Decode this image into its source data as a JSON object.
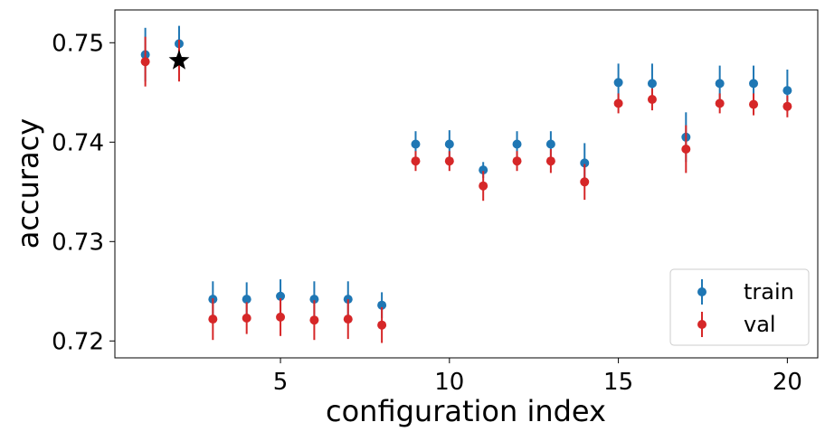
{
  "chart_data": {
    "type": "scatter",
    "title": "",
    "xlabel": "configuration index",
    "ylabel": "accuracy",
    "xlim": [
      0.1,
      20.9
    ],
    "ylim": [
      0.7183,
      0.7533
    ],
    "xticks": [
      5,
      10,
      15,
      20
    ],
    "yticks": [
      0.72,
      0.73,
      0.74,
      0.75
    ],
    "ytick_labels": [
      "0.72",
      "0.73",
      "0.74",
      "0.75"
    ],
    "grid": false,
    "legend_position": "bottom-right",
    "series": [
      {
        "name": "train",
        "color": "#1f77b4",
        "x": [
          1,
          2,
          3,
          4,
          5,
          6,
          7,
          8,
          9,
          10,
          11,
          12,
          13,
          14,
          15,
          16,
          17,
          18,
          19,
          20
        ],
        "y": [
          0.7488,
          0.7499,
          0.7242,
          0.7242,
          0.7245,
          0.7242,
          0.7242,
          0.7236,
          0.7398,
          0.7398,
          0.7372,
          0.7398,
          0.7398,
          0.7379,
          0.746,
          0.7459,
          0.7405,
          0.7459,
          0.7459,
          0.7452
        ],
        "err": [
          0.0027,
          0.0018,
          0.0018,
          0.0017,
          0.0017,
          0.0018,
          0.0018,
          0.0013,
          0.0013,
          0.0014,
          0.0008,
          0.0013,
          0.0013,
          0.002,
          0.0019,
          0.002,
          0.0025,
          0.0018,
          0.0018,
          0.0021
        ]
      },
      {
        "name": "val",
        "color": "#d62728",
        "x": [
          1,
          2,
          3,
          4,
          5,
          6,
          7,
          8,
          9,
          10,
          11,
          12,
          13,
          14,
          15,
          16,
          17,
          18,
          19,
          20
        ],
        "y": [
          0.7481,
          0.7482,
          0.7222,
          0.7223,
          0.7224,
          0.7221,
          0.7222,
          0.7216,
          0.7381,
          0.7381,
          0.7356,
          0.7381,
          0.7381,
          0.736,
          0.7439,
          0.7443,
          0.7393,
          0.7439,
          0.7438,
          0.7436
        ],
        "err": [
          0.0025,
          0.0021,
          0.0021,
          0.0016,
          0.0019,
          0.002,
          0.002,
          0.0018,
          0.001,
          0.001,
          0.0015,
          0.001,
          0.0012,
          0.0018,
          0.001,
          0.0011,
          0.0024,
          0.001,
          0.0011,
          0.0011
        ]
      }
    ],
    "markers": [
      {
        "shape": "star",
        "color": "#000000",
        "x": 2,
        "y": 0.7482
      }
    ]
  }
}
